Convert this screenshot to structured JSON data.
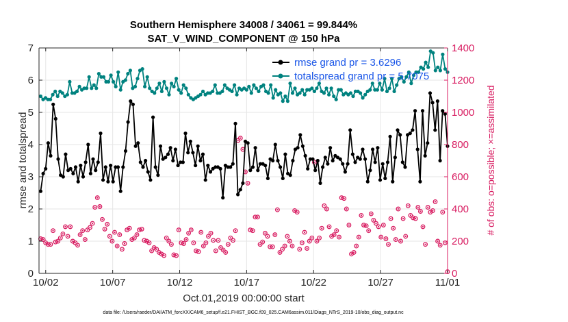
{
  "chart_data": {
    "type": "line",
    "title": "Southern Hemisphere 34008 / 34061 = 99.844%",
    "subtitle": "SAT_V_WIND_COMPONENT @ 150 hPa",
    "xlabel": "Oct.01,2019 00:00:00 start",
    "ylabel_left": "rmse and totalspread",
    "ylabel_right": "# of obs: o=possible; ×=assimilated",
    "footnote": "data file: /Users/raeder/DAI/ATM_forcXX/CAM6_setup/f.e21.FHIST_BGC.f09_025.CAM6assim.011/Diags_NTrS_2019-10/obs_diag_output.nc",
    "xlim": [
      1.5,
      32
    ],
    "ylim_left": [
      0,
      7
    ],
    "ylim_right": [
      0,
      1400
    ],
    "x_tick_values": [
      2,
      7,
      12,
      17,
      22,
      27,
      32
    ],
    "x_tick_labels": [
      "10/02",
      "10/07",
      "10/12",
      "10/17",
      "10/22",
      "10/27",
      "11/01"
    ],
    "y_left_ticks": [
      0,
      1,
      2,
      3,
      4,
      5,
      6,
      7
    ],
    "y_right_ticks": [
      0,
      200,
      400,
      600,
      800,
      1000,
      1200,
      1400
    ],
    "legend_position": "top-right",
    "series": [
      {
        "name": "rmse grand pr = 3.6296",
        "color": "#000000",
        "axis": "left",
        "values": [
          2.55,
          3.1,
          3.25,
          4.05,
          3.65,
          5.25,
          4.8,
          3.55,
          3.05,
          3,
          3.7,
          3.2,
          3.25,
          3.1,
          3.3,
          2.85,
          3.35,
          3,
          3.45,
          4,
          3.1,
          3.55,
          3.2,
          3.45,
          4.35,
          2.9,
          3.3,
          2.85,
          3.35,
          2.85,
          3.3,
          3.3,
          2.55,
          3.3,
          3.8,
          4.7,
          5.35,
          5.25,
          3.95,
          4.05,
          3.45,
          3.3,
          3.5,
          3.15,
          2.9,
          4.85,
          3.3,
          3.05,
          3.95,
          3.55,
          3.6,
          3.7,
          3.9,
          3.5,
          3.85,
          3.35,
          3.45,
          3.45,
          4.35,
          3.75,
          4.1,
          3.75,
          3.35,
          3.95,
          3.5,
          3.7,
          2.9,
          3.35,
          3.15,
          3.25,
          3.3,
          3.3,
          3.25,
          2.35,
          3.35,
          3.3,
          3.3,
          3.4,
          4.65,
          2.45,
          2.6,
          2.8,
          4.1,
          4.05,
          3.2,
          3.3,
          3.9,
          3.2,
          3.4,
          3.4,
          3.35,
          2.95,
          3.55,
          3.5,
          4,
          3.5,
          3.3,
          2.95,
          3.7,
          3.1,
          3.05,
          3.5,
          3.85,
          3.9,
          4.3,
          3.95,
          3.65,
          3.25,
          3.55,
          3.55,
          3.2,
          3.5,
          2.8,
          3.3,
          3.6,
          3.4,
          3.9,
          3.5,
          3.65,
          3.6,
          3.55,
          3.4,
          3.15,
          3.4,
          4.45,
          3.7,
          3.45,
          3.6,
          3.55,
          3.85,
          3.55,
          2.85,
          3.2,
          3.85,
          3.45,
          3.9,
          2.9,
          3.4,
          2.95,
          3.45,
          4.25,
          2.85,
          3.6,
          4.45,
          4.3,
          3.45,
          3.3,
          4.3,
          4.35,
          4.45,
          5.05,
          3.85,
          2.85,
          5.05,
          3.65,
          4.05,
          5.6,
          5.3,
          4.45,
          5.35,
          3.5,
          5.05,
          4.95,
          3.95
        ]
      },
      {
        "name": "totalspread grand pr = 5.7075",
        "color": "#00827f",
        "axis": "left",
        "values": [
          5.5,
          5.4,
          5.45,
          5.4,
          5.4,
          5.55,
          5.65,
          5.5,
          5.65,
          5.6,
          5.5,
          5.55,
          5.95,
          5.6,
          5.6,
          5.65,
          5.8,
          5.7,
          5.75,
          5.75,
          6.1,
          5.75,
          5.85,
          5.75,
          6.2,
          6.1,
          6.1,
          5.95,
          5.95,
          6.15,
          5.95,
          5.8,
          6.25,
          5.7,
          5.95,
          6,
          6.2,
          6.3,
          5.75,
          5.8,
          6.05,
          6.3,
          6.35,
          5.8,
          6.1,
          5.75,
          5.65,
          5.6,
          5.75,
          5.9,
          5.65,
          5.95,
          5.75,
          5.55,
          5.9,
          5.8,
          6.05,
          5.7,
          5.6,
          5.85,
          5.75,
          5.55,
          5.45,
          5.4,
          5.45,
          5.5,
          5.55,
          5.65,
          5.55,
          5.6,
          5.6,
          5.65,
          5.85,
          5.6,
          5.6,
          5.65,
          5.85,
          5.75,
          5.7,
          5.65,
          5.85,
          5.55,
          5.75,
          5.7,
          5.75,
          5.7,
          5.8,
          5.6,
          5.85,
          5.75,
          5.65,
          5.8,
          5.85,
          5.65,
          5.6,
          5.85,
          5.45,
          5.7,
          5.55,
          5.6,
          5.35,
          5.5,
          5.35,
          5.9,
          5.6,
          5.75,
          5.55,
          5.6,
          5.7,
          5.55,
          5.7,
          5.7,
          5.75,
          5.65,
          5.75,
          5.9,
          5.65,
          5.6,
          5.75,
          5.55,
          5.75,
          5.5,
          5.4,
          5.7,
          5.7,
          5.55,
          5.6,
          5.55,
          5.6,
          5.5,
          5.65,
          5.65,
          5.6,
          5.45,
          5.55,
          5.65,
          5.7,
          5.9,
          5.7,
          5.7,
          5.9,
          5.7,
          6.05,
          5.65,
          5.75,
          6.05,
          5.65,
          5.85,
          6.05,
          6.1,
          5.95,
          6.1,
          6.25,
          5.9,
          6.15,
          6.25,
          6.25,
          6.4,
          6.35,
          6.55,
          6.4,
          6.9,
          6.85,
          6.3,
          6.4,
          6.3,
          6.8,
          6.35,
          6.25
        ]
      },
      {
        "name": "possible",
        "marker": "o",
        "color": "#d81b60",
        "axis": "right",
        "values": [
          215,
          210,
          190,
          180,
          180,
          265,
          195,
          200,
          220,
          245,
          290,
          230,
          290,
          200,
          190,
          175,
          240,
          265,
          210,
          270,
          285,
          310,
          410,
          470,
          415,
          335,
          275,
          305,
          230,
          200,
          255,
          170,
          240,
          150,
          185,
          270,
          280,
          210,
          220,
          240,
          270,
          275,
          205,
          200,
          190,
          140,
          160,
          150,
          130,
          120,
          110,
          220,
          200,
          180,
          115,
          110,
          270,
          190,
          185,
          210,
          250,
          270,
          190,
          140,
          135,
          255,
          170,
          190,
          230,
          250,
          205,
          140,
          205,
          160,
          145,
          130,
          180,
          220,
          205,
          265,
          825,
          840,
          770,
          630,
          560,
          270,
          265,
          350,
          350,
          180,
          195,
          250,
          230,
          165,
          165,
          240,
          395,
          130,
          150,
          170,
          230,
          200,
          170,
          390,
          380,
          150,
          190,
          255,
          155,
          200,
          220,
          690,
          200,
          220,
          280,
          420,
          400,
          290,
          230,
          240,
          265,
          225,
          470,
          465,
          400,
          300,
          120,
          130,
          170,
          225,
          360,
          300,
          295,
          265,
          370,
          330,
          310,
          290,
          225,
          300,
          215,
          180,
          340,
          280,
          210,
          400,
          200,
          340,
          230,
          420,
          360,
          345,
          340,
          410,
          385,
          290,
          180,
          410,
          380,
          390,
          445,
          200,
          175,
          380,
          190,
          10
        ]
      }
    ]
  }
}
